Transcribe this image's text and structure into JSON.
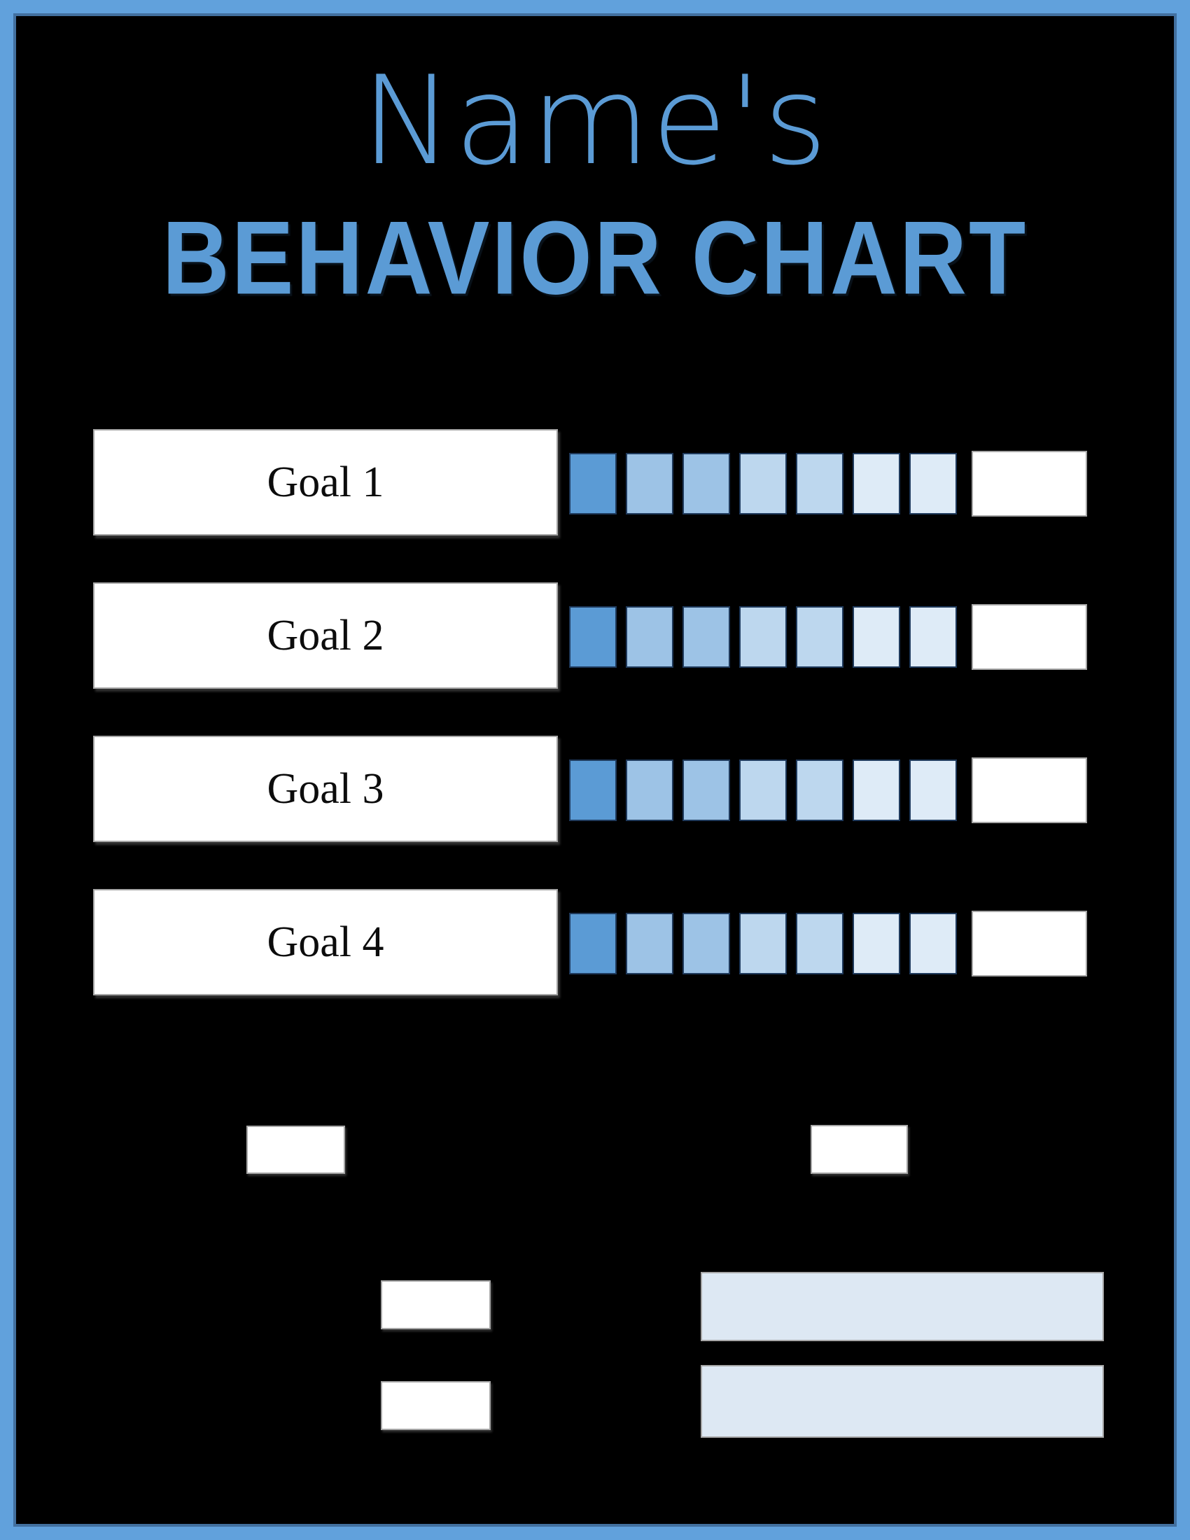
{
  "colors": {
    "frame-blue": "#61a1dc",
    "frame-inner": "#42709f",
    "title-blue": "#5b9bd5",
    "square-border": "#1f3a5c",
    "box-border": "#a6a6a6",
    "field-blue": "#dde8f3"
  },
  "title": {
    "name": "Name's",
    "main": "BEHAVIOR CHART"
  },
  "goals": [
    {
      "label": "Goal 1"
    },
    {
      "label": "Goal 2"
    },
    {
      "label": "Goal 3"
    },
    {
      "label": "Goal 4"
    }
  ],
  "progress_square_colors": [
    "#5B9BD5",
    "#9DC3E6",
    "#9DC3E6",
    "#BDD7EE",
    "#BDD7EE",
    "#DEEBF7",
    "#DEEBF7"
  ],
  "fields": {
    "small_left": "",
    "small_right": "",
    "mid_left_1": "",
    "mid_left_2": "",
    "bar_1": "",
    "bar_2": ""
  }
}
